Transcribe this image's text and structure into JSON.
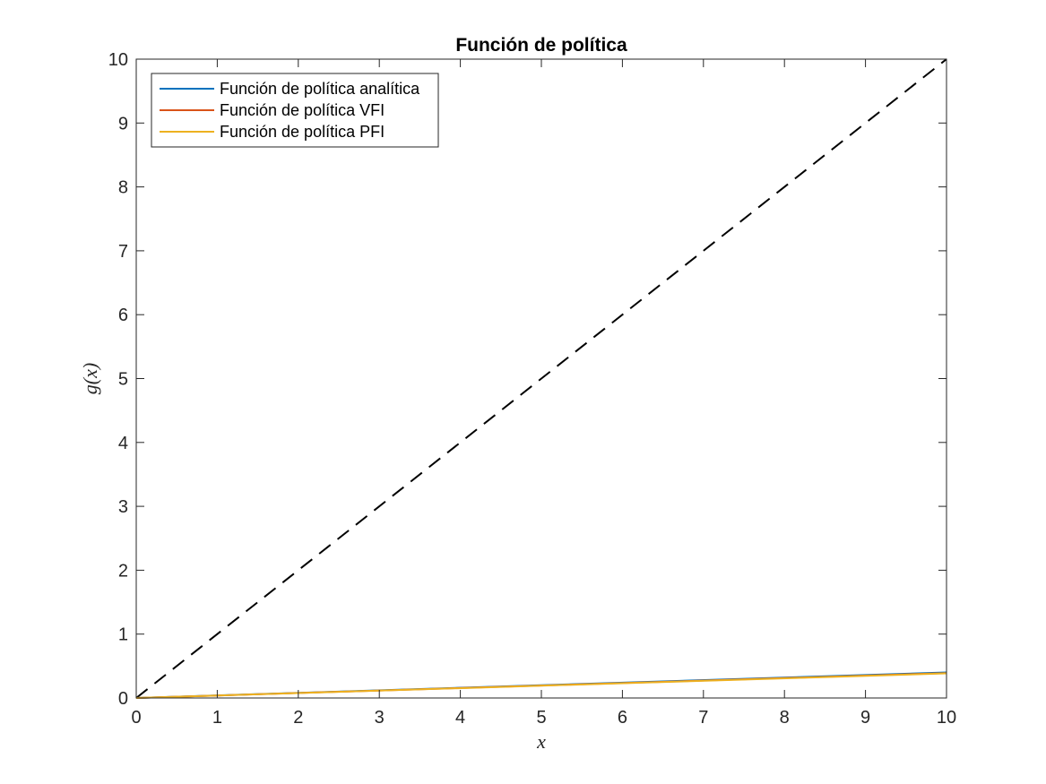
{
  "chart_data": {
    "type": "line",
    "title": "Función de política",
    "xlabel": "x",
    "ylabel": "g(x)",
    "xlim": [
      0,
      10
    ],
    "ylim": [
      0,
      10
    ],
    "xticks": [
      0,
      1,
      2,
      3,
      4,
      5,
      6,
      7,
      8,
      9,
      10
    ],
    "yticks": [
      0,
      1,
      2,
      3,
      4,
      5,
      6,
      7,
      8,
      9,
      10
    ],
    "grid": false,
    "box": true,
    "legend_location": "top-left",
    "series": [
      {
        "name": "Función de política analítica",
        "color": "#0072BD",
        "style": "solid",
        "in_legend": true,
        "x": [
          0,
          10
        ],
        "y": [
          0,
          0.4
        ]
      },
      {
        "name": "Función de política VFI",
        "color": "#D95319",
        "style": "solid",
        "in_legend": true,
        "x": [
          0,
          10
        ],
        "y": [
          0,
          0.39
        ]
      },
      {
        "name": "Función de política PFI",
        "color": "#EDB120",
        "style": "solid",
        "in_legend": true,
        "x": [
          0,
          10
        ],
        "y": [
          0,
          0.385
        ]
      },
      {
        "name": "",
        "color": "#000000",
        "style": "dashed",
        "in_legend": false,
        "x": [
          0,
          10
        ],
        "y": [
          0,
          10
        ]
      }
    ]
  }
}
